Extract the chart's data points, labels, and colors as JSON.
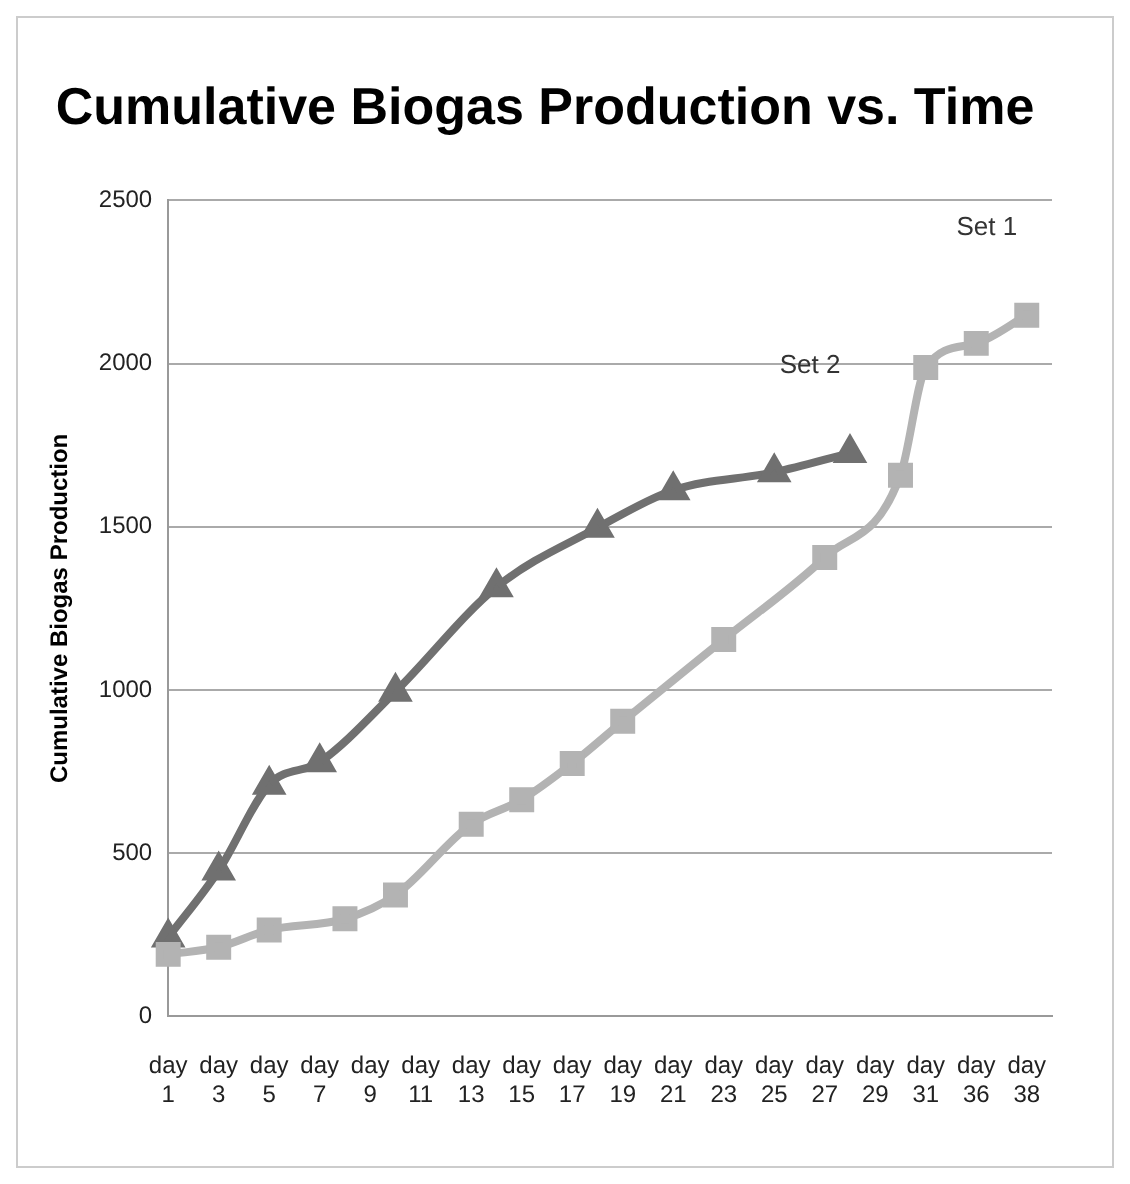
{
  "chart_data": {
    "type": "line",
    "title": "Cumulative Biogas Production vs. Time",
    "ylabel": "Cumulative Biogas Production",
    "categories": [
      "day 1",
      null,
      "day 3",
      null,
      "day 5",
      null,
      "day 7",
      null,
      "day 9",
      null,
      "day 11",
      null,
      "day 13",
      null,
      "day 15",
      null,
      "day 17",
      null,
      "day 19",
      null,
      "day 21",
      null,
      "day 23",
      null,
      "day 25",
      null,
      "day 27",
      null,
      "day 29",
      null,
      "day 31",
      null,
      "day 36",
      null,
      "day 38",
      null
    ],
    "series": [
      {
        "name": "Set 1",
        "color": "#b3b3b3",
        "marker": "square",
        "values": [
          190,
          null,
          212,
          null,
          265,
          null,
          null,
          299,
          null,
          372,
          null,
          null,
          589,
          null,
          664,
          null,
          775,
          null,
          904,
          null,
          null,
          null,
          1155,
          null,
          null,
          null,
          1406,
          null,
          null,
          1658,
          1988,
          null,
          2062,
          null,
          2148,
          null
        ]
      },
      {
        "name": "Set 2",
        "color": "#707070",
        "marker": "triangle",
        "values": [
          242,
          null,
          447,
          null,
          710,
          null,
          779,
          null,
          null,
          995,
          null,
          null,
          null,
          1315,
          null,
          null,
          null,
          1497,
          null,
          null,
          1612,
          null,
          null,
          null,
          1667,
          null,
          null,
          1726,
          null,
          null,
          null,
          null,
          null,
          null,
          null,
          null
        ]
      }
    ],
    "ylim": [
      0,
      2500
    ],
    "yticks": [
      0,
      500,
      1000,
      1500,
      2000,
      2500
    ],
    "grid": "y",
    "legend": false
  }
}
